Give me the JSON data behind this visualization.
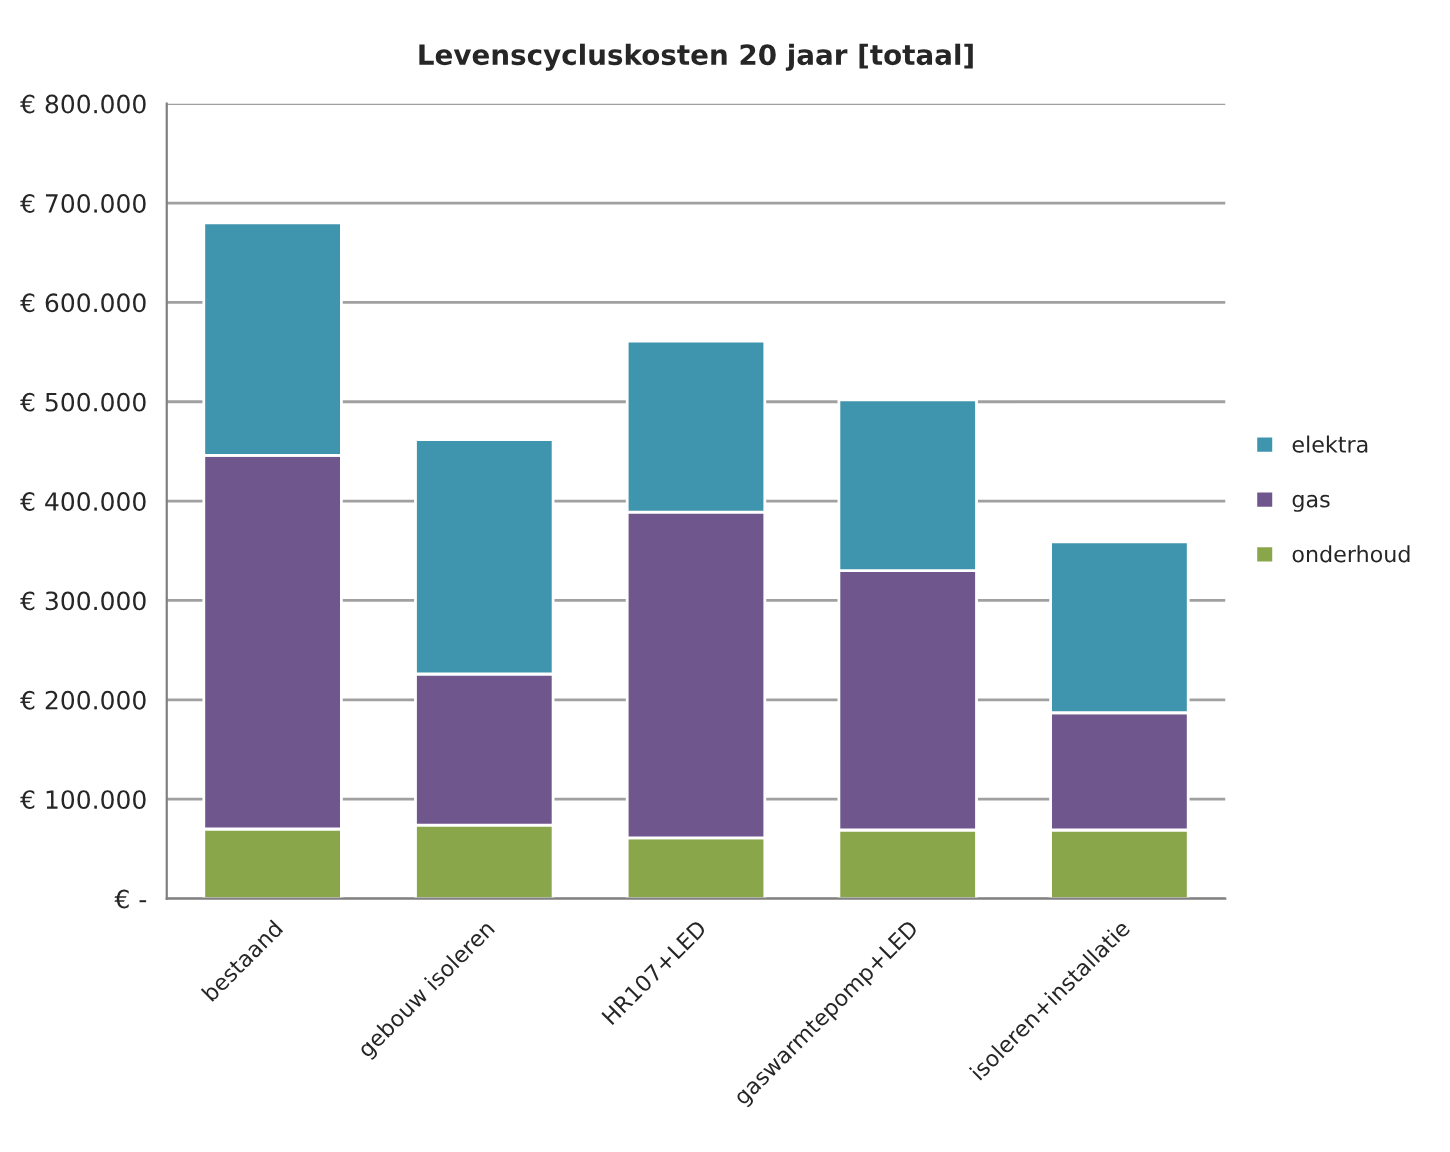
{
  "chart_data": {
    "type": "bar",
    "title": "Levenscycluskosten 20 jaar [totaal]",
    "categories": [
      "bestaand",
      "gebouw isoleren",
      "HR107+LED",
      "gaswarmtepomp+LED",
      "isoleren+installatie"
    ],
    "stacked": true,
    "series": [
      {
        "name": "onderhoud",
        "color": "#8aa64b",
        "values": [
          70000,
          74000,
          61000,
          69000,
          69000
        ]
      },
      {
        "name": "gas",
        "color": "#6f578e",
        "values": [
          376000,
          152000,
          328000,
          261000,
          118000
        ]
      },
      {
        "name": "elektra",
        "color": "#3f95ad",
        "values": [
          234000,
          236000,
          172000,
          172000,
          172000
        ]
      }
    ],
    "ylim": [
      0,
      800000
    ],
    "yticks": [
      {
        "value": 0,
        "label": "€ -"
      },
      {
        "value": 100000,
        "label": "€ 100.000"
      },
      {
        "value": 200000,
        "label": "€ 200.000"
      },
      {
        "value": 300000,
        "label": "€ 300.000"
      },
      {
        "value": 400000,
        "label": "€ 400.000"
      },
      {
        "value": 500000,
        "label": "€ 500.000"
      },
      {
        "value": 600000,
        "label": "€ 600.000"
      },
      {
        "value": 700000,
        "label": "€ 700.000"
      },
      {
        "value": 800000,
        "label": "€ 800.000"
      }
    ],
    "grid": "y",
    "legend": "right"
  }
}
